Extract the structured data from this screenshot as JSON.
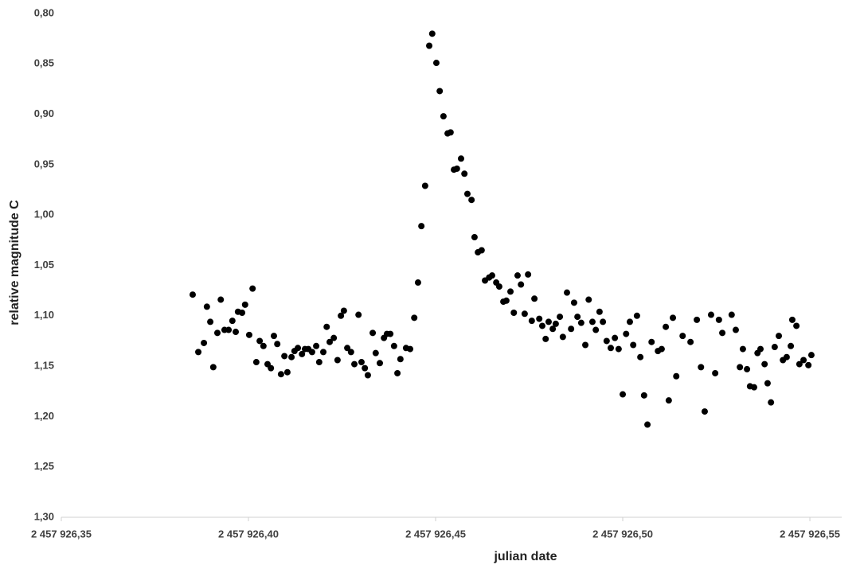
{
  "chart_data": {
    "type": "scatter",
    "x_label": "julian date",
    "y_label": "relative magnitude C",
    "color": "#000000",
    "y_reversed": true,
    "xlim": [
      2457926.35,
      2457926.5585
    ],
    "ylim": [
      0.8,
      1.3
    ],
    "xticks": [
      {
        "value": 2457926.35,
        "label": "2 457 926,35"
      },
      {
        "value": 2457926.4,
        "label": "2 457 926,40"
      },
      {
        "value": 2457926.45,
        "label": "2 457 926,45"
      },
      {
        "value": 2457926.5,
        "label": "2 457 926,50"
      },
      {
        "value": 2457926.55,
        "label": "2 457 926,55"
      }
    ],
    "yticks": [
      {
        "value": 0.8,
        "label": "0,80"
      },
      {
        "value": 0.85,
        "label": "0,85"
      },
      {
        "value": 0.9,
        "label": "0,90"
      },
      {
        "value": 0.95,
        "label": "0,95"
      },
      {
        "value": 1.0,
        "label": "1,00"
      },
      {
        "value": 1.05,
        "label": "1,05"
      },
      {
        "value": 1.1,
        "label": "1,10"
      },
      {
        "value": 1.15,
        "label": "1,15"
      },
      {
        "value": 1.2,
        "label": "1,20"
      },
      {
        "value": 1.25,
        "label": "1,25"
      },
      {
        "value": 1.3,
        "label": "1,30"
      }
    ],
    "x": [
      2457926.3851,
      2457926.3866,
      2457926.3881,
      2457926.3889,
      2457926.3898,
      2457926.3906,
      2457926.3917,
      2457926.3926,
      2457926.3936,
      2457926.3947,
      2457926.3957,
      2457926.3966,
      2457926.3972,
      2457926.3983,
      2457926.3991,
      2457926.4002,
      2457926.4011,
      2457926.4021,
      2457926.403,
      2457926.404,
      2457926.4051,
      2457926.406,
      2457926.4068,
      2457926.4077,
      2457926.4087,
      2457926.4096,
      2457926.4104,
      2457926.4115,
      2457926.4123,
      2457926.4132,
      2457926.4143,
      2457926.4151,
      2457926.416,
      2457926.417,
      2457926.4181,
      2457926.4189,
      2457926.42,
      2457926.4209,
      2457926.4217,
      2457926.4228,
      2457926.4238,
      2457926.4247,
      2457926.4255,
      2457926.4264,
      2457926.4274,
      2457926.4283,
      2457926.4294,
      2457926.4302,
      2457926.4311,
      2457926.4319,
      2457926.4332,
      2457926.434,
      2457926.4351,
      2457926.4362,
      2457926.437,
      2457926.4379,
      2457926.4389,
      2457926.4398,
      2457926.4406,
      2457926.4421,
      2457926.4432,
      2457926.4443,
      2457926.4453,
      2457926.4462,
      2457926.4472,
      2457926.4483,
      2457926.4491,
      2457926.4502,
      2457926.4511,
      2457926.4521,
      2457926.4532,
      2457926.454,
      2457926.4549,
      2457926.4557,
      2457926.4568,
      2457926.4577,
      2457926.4585,
      2457926.4596,
      2457926.4604,
      2457926.4613,
      2457926.4623,
      2457926.4632,
      2457926.4643,
      2457926.4651,
      2457926.4662,
      2457926.467,
      2457926.4681,
      2457926.4689,
      2457926.47,
      2457926.4709,
      2457926.4719,
      2457926.4728,
      2457926.4738,
      2457926.4747,
      2457926.4757,
      2457926.4764,
      2457926.4777,
      2457926.4785,
      2457926.4794,
      2457926.4802,
      2457926.4813,
      2457926.4821,
      2457926.4832,
      2457926.484,
      2457926.4851,
      2457926.4862,
      2457926.487,
      2457926.4879,
      2457926.4889,
      2457926.49,
      2457926.4909,
      2457926.4919,
      2457926.4928,
      2457926.4938,
      2457926.4947,
      2457926.4957,
      2457926.4968,
      2457926.4979,
      2457926.4989,
      2457926.5,
      2457926.5009,
      2457926.5019,
      2457926.5028,
      2457926.5038,
      2457926.5047,
      2457926.5057,
      2457926.5066,
      2457926.5077,
      2457926.5094,
      2457926.5104,
      2457926.5115,
      2457926.5123,
      2457926.5134,
      2457926.5143,
      2457926.516,
      2457926.5181,
      2457926.5198,
      2457926.5209,
      2457926.5219,
      2457926.5236,
      2457926.5247,
      2457926.5257,
      2457926.5266,
      2457926.5291,
      2457926.5302,
      2457926.5313,
      2457926.5321,
      2457926.5332,
      2457926.534,
      2457926.5351,
      2457926.536,
      2457926.5368,
      2457926.5379,
      2457926.5387,
      2457926.5396,
      2457926.5406,
      2457926.5417,
      2457926.5428,
      2457926.5438,
      2457926.5449,
      2457926.5453,
      2457926.5464,
      2457926.5472,
      2457926.5483,
      2457926.5496,
      2457926.5504
    ],
    "values": [
      1.079,
      1.136,
      1.127,
      1.091,
      1.106,
      1.151,
      1.117,
      1.084,
      1.114,
      1.114,
      1.105,
      1.116,
      1.096,
      1.097,
      1.089,
      1.119,
      1.073,
      1.146,
      1.125,
      1.13,
      1.148,
      1.152,
      1.12,
      1.128,
      1.158,
      1.14,
      1.156,
      1.141,
      1.135,
      1.132,
      1.138,
      1.133,
      1.133,
      1.136,
      1.13,
      1.146,
      1.136,
      1.111,
      1.126,
      1.122,
      1.144,
      1.1,
      1.095,
      1.132,
      1.136,
      1.148,
      1.099,
      1.146,
      1.152,
      1.159,
      1.117,
      1.137,
      1.147,
      1.122,
      1.118,
      1.118,
      1.13,
      1.157,
      1.143,
      1.132,
      1.133,
      1.102,
      1.067,
      1.011,
      0.971,
      0.832,
      0.82,
      0.849,
      0.877,
      0.902,
      0.919,
      0.918,
      0.955,
      0.954,
      0.944,
      0.959,
      0.979,
      0.985,
      1.022,
      1.037,
      1.035,
      1.065,
      1.062,
      1.06,
      1.067,
      1.071,
      1.086,
      1.085,
      1.076,
      1.097,
      1.06,
      1.069,
      1.098,
      1.059,
      1.105,
      1.083,
      1.103,
      1.11,
      1.123,
      1.106,
      1.113,
      1.108,
      1.101,
      1.121,
      1.077,
      1.113,
      1.087,
      1.101,
      1.107,
      1.129,
      1.084,
      1.106,
      1.114,
      1.096,
      1.106,
      1.125,
      1.132,
      1.122,
      1.133,
      1.178,
      1.118,
      1.106,
      1.129,
      1.1,
      1.141,
      1.179,
      1.208,
      1.126,
      1.135,
      1.133,
      1.111,
      1.184,
      1.102,
      1.16,
      1.12,
      1.126,
      1.104,
      1.151,
      1.195,
      1.099,
      1.157,
      1.104,
      1.117,
      1.099,
      1.114,
      1.151,
      1.133,
      1.153,
      1.17,
      1.171,
      1.137,
      1.133,
      1.148,
      1.167,
      1.186,
      1.131,
      1.12,
      1.144,
      1.141,
      1.13,
      1.104,
      1.11,
      1.148,
      1.144,
      1.149,
      1.139
    ]
  }
}
